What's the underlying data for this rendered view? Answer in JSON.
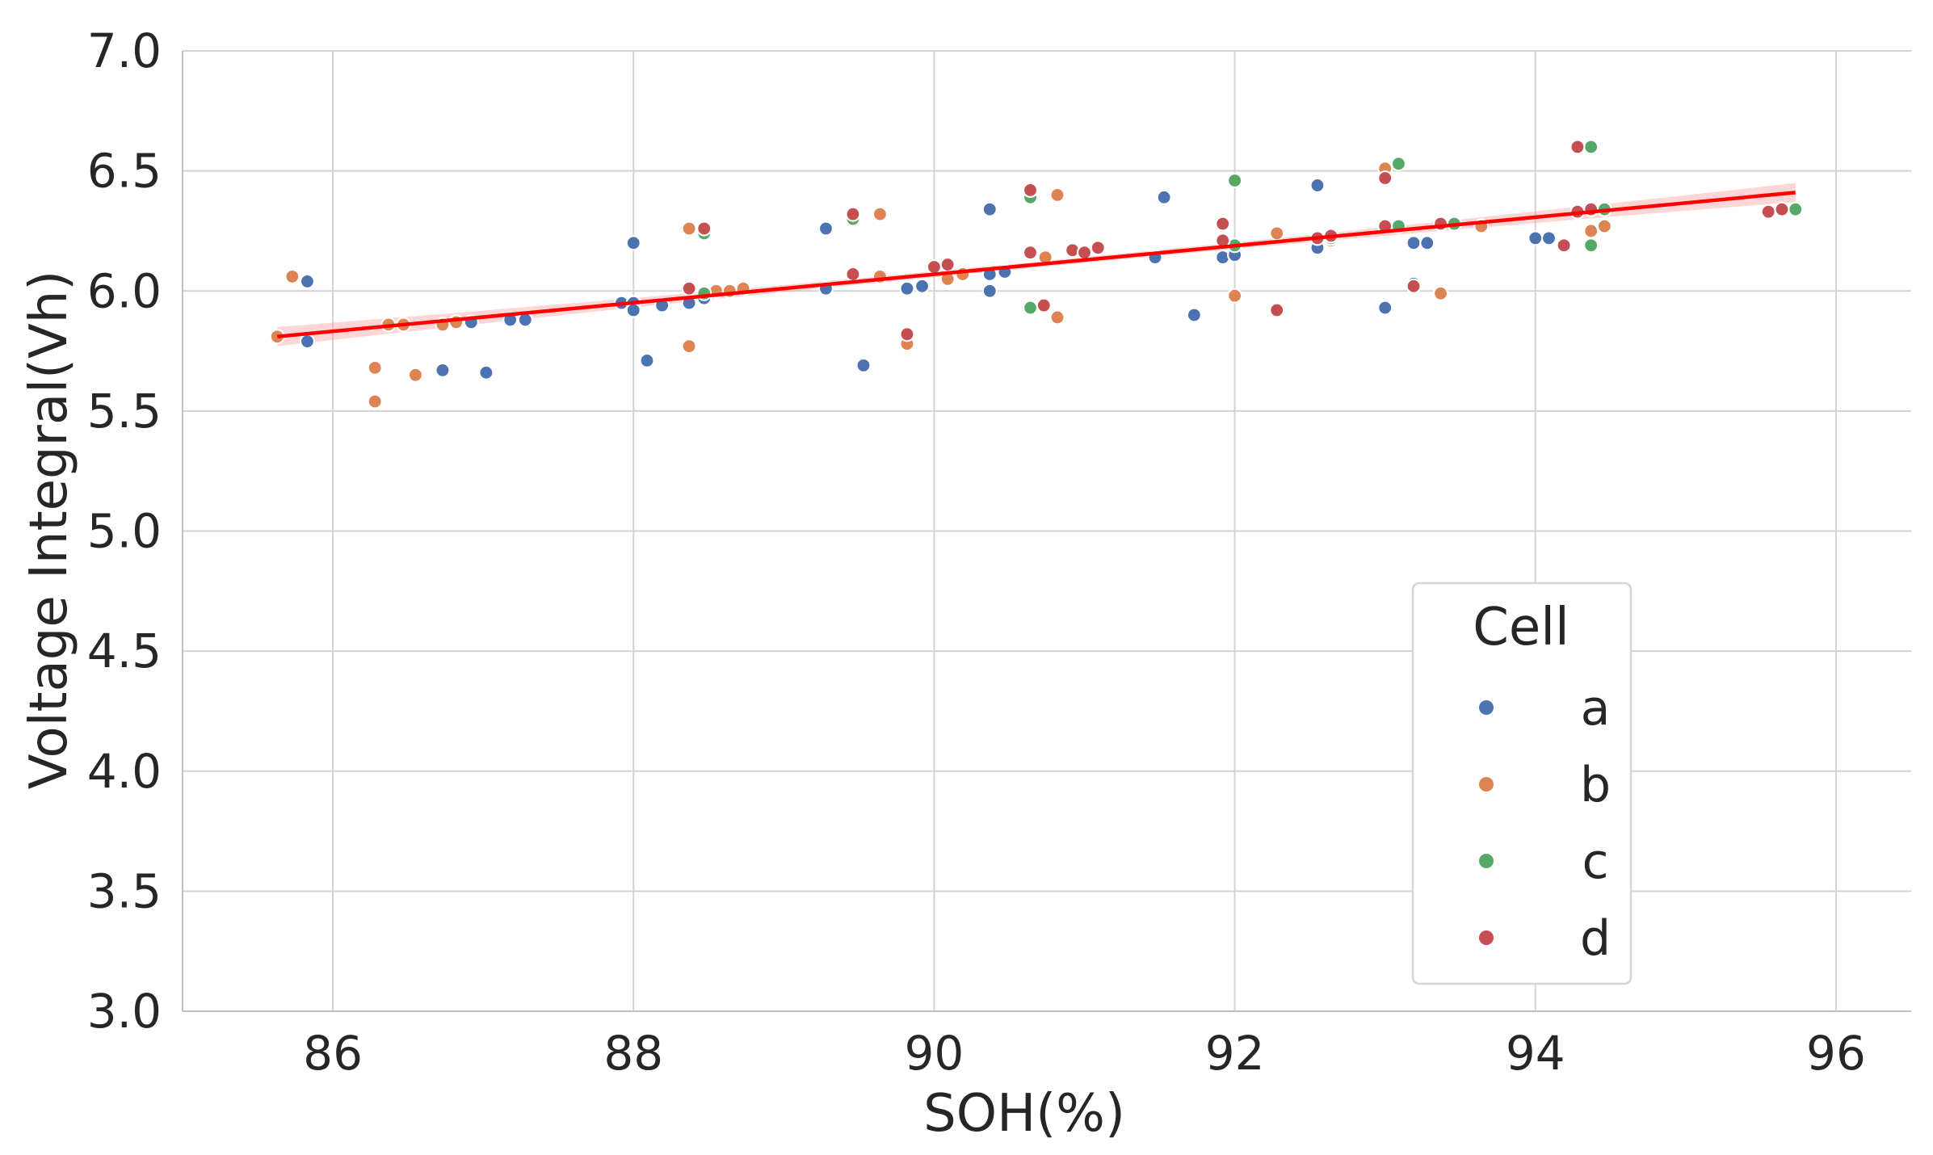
{
  "chart_data": {
    "type": "scatter",
    "title": "",
    "xlabel": "SOH(%)",
    "ylabel": "Voltage Integral(Vh)",
    "xlim": [
      85,
      96.5
    ],
    "ylim": [
      3.0,
      7.0
    ],
    "xticks": [
      86,
      88,
      90,
      92,
      94,
      96
    ],
    "yticks": [
      3.0,
      3.5,
      4.0,
      4.5,
      5.0,
      5.5,
      6.0,
      6.5,
      7.0
    ],
    "xtick_labels": [
      "86",
      "88",
      "90",
      "92",
      "94",
      "96"
    ],
    "ytick_labels": [
      "3.0",
      "3.5",
      "4.0",
      "4.5",
      "5.0",
      "5.5",
      "6.0",
      "6.5",
      "7.0"
    ],
    "grid": true,
    "legend": {
      "title": "Cell",
      "placement": "lower-right"
    },
    "series": [
      {
        "name": "a",
        "color": "#4c72b0",
        "points": [
          [
            85.83,
            6.04
          ],
          [
            85.83,
            5.79
          ],
          [
            86.73,
            5.67
          ],
          [
            86.92,
            5.87
          ],
          [
            87.02,
            5.66
          ],
          [
            87.18,
            5.88
          ],
          [
            87.28,
            5.88
          ],
          [
            87.92,
            5.95
          ],
          [
            88.0,
            5.95
          ],
          [
            88.0,
            5.92
          ],
          [
            88.0,
            6.2
          ],
          [
            88.09,
            5.71
          ],
          [
            88.19,
            5.94
          ],
          [
            88.37,
            5.95
          ],
          [
            88.47,
            5.97
          ],
          [
            89.28,
            6.26
          ],
          [
            89.28,
            6.01
          ],
          [
            89.53,
            5.69
          ],
          [
            89.82,
            6.01
          ],
          [
            89.92,
            6.02
          ],
          [
            90.37,
            6.34
          ],
          [
            90.37,
            6.07
          ],
          [
            90.37,
            6.0
          ],
          [
            90.47,
            6.08
          ],
          [
            91.47,
            6.14
          ],
          [
            91.53,
            6.39
          ],
          [
            91.73,
            5.9
          ],
          [
            91.92,
            6.14
          ],
          [
            92.0,
            6.15
          ],
          [
            92.55,
            6.44
          ],
          [
            92.55,
            6.18
          ],
          [
            93.0,
            5.93
          ],
          [
            93.19,
            6.2
          ],
          [
            93.19,
            6.03
          ],
          [
            93.28,
            6.2
          ],
          [
            94.0,
            6.22
          ],
          [
            94.09,
            6.22
          ]
        ]
      },
      {
        "name": "b",
        "color": "#dd8452",
        "points": [
          [
            85.63,
            5.81
          ],
          [
            85.73,
            6.06
          ],
          [
            86.28,
            5.68
          ],
          [
            86.28,
            5.54
          ],
          [
            86.37,
            5.86
          ],
          [
            86.47,
            5.86
          ],
          [
            86.55,
            5.65
          ],
          [
            86.73,
            5.86
          ],
          [
            86.82,
            5.87
          ],
          [
            88.37,
            6.26
          ],
          [
            88.37,
            5.77
          ],
          [
            88.55,
            6.0
          ],
          [
            88.64,
            6.0
          ],
          [
            88.73,
            6.01
          ],
          [
            89.64,
            6.32
          ],
          [
            89.64,
            6.06
          ],
          [
            89.82,
            5.78
          ],
          [
            90.09,
            6.05
          ],
          [
            90.19,
            6.07
          ],
          [
            90.74,
            6.14
          ],
          [
            90.82,
            6.4
          ],
          [
            90.82,
            5.89
          ],
          [
            92.0,
            5.98
          ],
          [
            92.28,
            6.24
          ],
          [
            92.64,
            6.21
          ],
          [
            93.0,
            6.51
          ],
          [
            93.37,
            5.99
          ],
          [
            93.64,
            6.27
          ],
          [
            94.37,
            6.25
          ],
          [
            94.46,
            6.27
          ]
        ]
      },
      {
        "name": "c",
        "color": "#55a868",
        "points": [
          [
            88.47,
            6.24
          ],
          [
            88.47,
            5.99
          ],
          [
            89.46,
            6.3
          ],
          [
            90.64,
            6.39
          ],
          [
            90.64,
            5.93
          ],
          [
            92.0,
            6.46
          ],
          [
            92.0,
            6.19
          ],
          [
            92.64,
            6.22
          ],
          [
            93.09,
            6.53
          ],
          [
            93.09,
            6.27
          ],
          [
            93.46,
            6.28
          ],
          [
            94.37,
            6.6
          ],
          [
            94.37,
            6.19
          ],
          [
            94.46,
            6.34
          ],
          [
            95.73,
            6.34
          ]
        ]
      },
      {
        "name": "d",
        "color": "#c44e52",
        "points": [
          [
            88.37,
            6.01
          ],
          [
            88.47,
            6.26
          ],
          [
            89.46,
            6.32
          ],
          [
            89.46,
            6.07
          ],
          [
            89.82,
            5.82
          ],
          [
            90.0,
            6.1
          ],
          [
            90.09,
            6.11
          ],
          [
            90.64,
            6.42
          ],
          [
            90.64,
            6.16
          ],
          [
            90.73,
            5.94
          ],
          [
            90.92,
            6.17
          ],
          [
            91.0,
            6.16
          ],
          [
            91.09,
            6.18
          ],
          [
            91.92,
            6.28
          ],
          [
            91.92,
            6.21
          ],
          [
            92.28,
            5.92
          ],
          [
            92.55,
            6.22
          ],
          [
            92.64,
            6.23
          ],
          [
            93.0,
            6.47
          ],
          [
            93.0,
            6.27
          ],
          [
            93.19,
            6.02
          ],
          [
            93.37,
            6.28
          ],
          [
            94.19,
            6.19
          ],
          [
            94.28,
            6.6
          ],
          [
            94.28,
            6.33
          ],
          [
            94.37,
            6.34
          ],
          [
            95.55,
            6.33
          ],
          [
            95.64,
            6.34
          ]
        ]
      }
    ],
    "regression": {
      "color": "#ff0000",
      "x": [
        85.63,
        95.73
      ],
      "y": [
        5.81,
        6.41
      ],
      "ci_halfwidth_ends": 0.04,
      "ci_halfwidth_center": 0.012
    }
  }
}
